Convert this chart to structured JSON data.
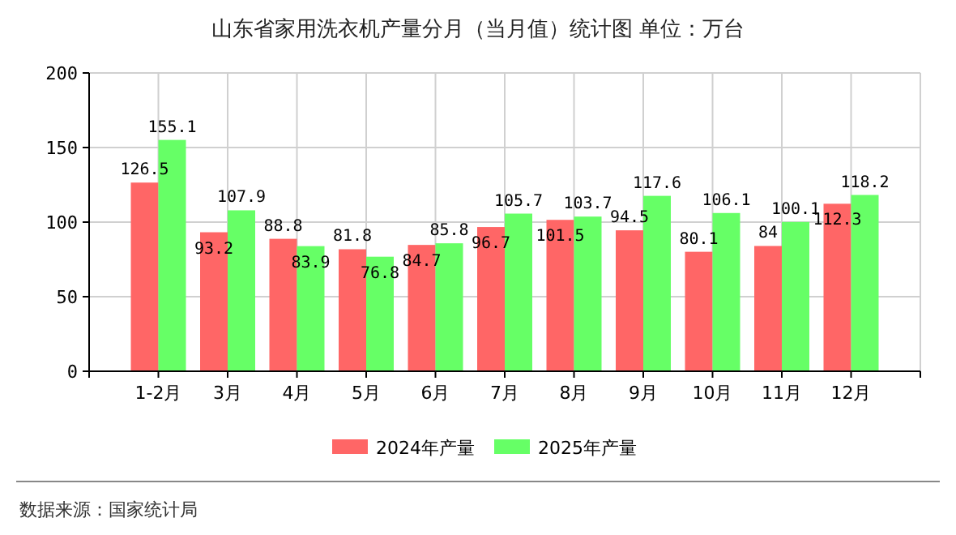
{
  "chart_data": {
    "type": "bar",
    "title": "山东省家用洗衣机产量分月（当月值）统计图 单位：万台",
    "categories": [
      "1-2月",
      "3月",
      "4月",
      "5月",
      "6月",
      "7月",
      "8月",
      "9月",
      "10月",
      "11月",
      "12月"
    ],
    "series": [
      {
        "name": "2024年产量",
        "color": "#ff6666",
        "values": [
          126.5,
          93.2,
          88.8,
          81.8,
          84.7,
          96.7,
          101.5,
          94.5,
          80.1,
          84,
          112.3
        ]
      },
      {
        "name": "2025年产量",
        "color": "#66ff66",
        "values": [
          155.1,
          107.9,
          83.9,
          76.8,
          85.8,
          105.7,
          103.7,
          117.6,
          106.1,
          100.1,
          118.2
        ]
      }
    ],
    "ylim": [
      0,
      200
    ],
    "yticks": [
      0,
      50,
      100,
      150,
      200
    ],
    "grid": true,
    "legend": "bottom",
    "data_labels": true,
    "annotations": [
      "数据来源：国家统计局"
    ]
  }
}
